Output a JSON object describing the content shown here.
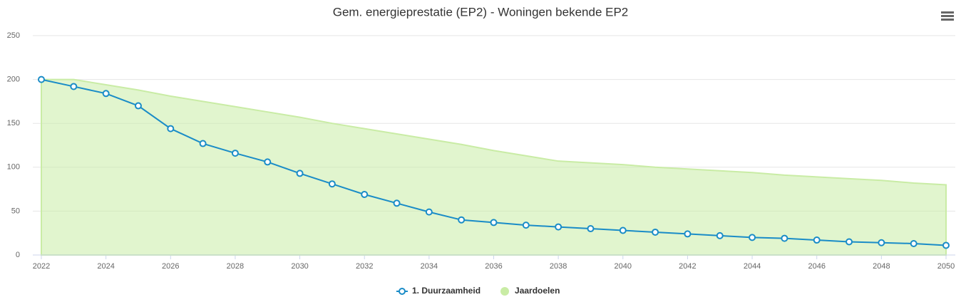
{
  "chart_data": {
    "type": "line",
    "title": "Gem. energieprestatie (EP2) - Woningen bekende EP2",
    "x": [
      2022,
      2023,
      2024,
      2025,
      2026,
      2027,
      2028,
      2029,
      2030,
      2031,
      2032,
      2033,
      2034,
      2035,
      2036,
      2037,
      2038,
      2039,
      2040,
      2041,
      2042,
      2043,
      2044,
      2045,
      2046,
      2047,
      2048,
      2049,
      2050
    ],
    "series": [
      {
        "name": "1. Duurzaamheid",
        "type": "line",
        "color": "#1a8cc7",
        "values": [
          200,
          192,
          184,
          170,
          144,
          127,
          116,
          106,
          93,
          81,
          69,
          59,
          49,
          40,
          37,
          34,
          32,
          30,
          28,
          26,
          24,
          22,
          20,
          19,
          17,
          15,
          14,
          13,
          11
        ]
      },
      {
        "name": "Jaardoelen",
        "type": "area",
        "color": "#c9eca5",
        "values": [
          200,
          200,
          194,
          188,
          181,
          175,
          169,
          163,
          157,
          150,
          144,
          138,
          132,
          126,
          119,
          113,
          107,
          105,
          103,
          100,
          98,
          96,
          94,
          91,
          89,
          87,
          85,
          82,
          80
        ]
      }
    ],
    "xlim": [
      2022,
      2050
    ],
    "xticks": [
      2022,
      2024,
      2026,
      2028,
      2030,
      2032,
      2034,
      2036,
      2038,
      2040,
      2042,
      2044,
      2046,
      2048,
      2050
    ],
    "ylim": [
      0,
      250
    ],
    "yticks": [
      0,
      50,
      100,
      150,
      200,
      250
    ],
    "grid": true
  }
}
